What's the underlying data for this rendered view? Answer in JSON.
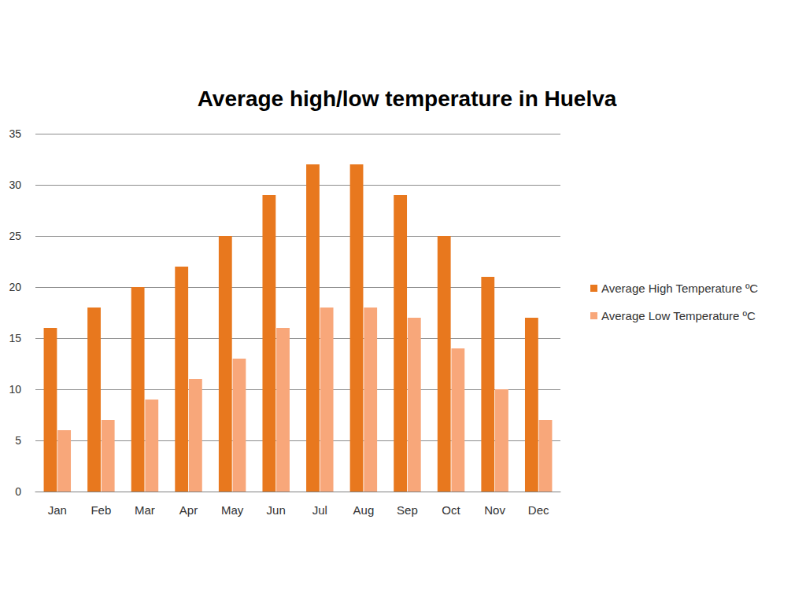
{
  "chart_data": {
    "type": "bar",
    "title": "Average high/low temperature in Huelva",
    "categories": [
      "Jan",
      "Feb",
      "Mar",
      "Apr",
      "May",
      "Jun",
      "Jul",
      "Aug",
      "Sep",
      "Oct",
      "Nov",
      "Dec"
    ],
    "series": [
      {
        "name": "Average High Temperature ºC",
        "color": "#e8781e",
        "values": [
          16,
          18,
          20,
          22,
          25,
          29,
          32,
          32,
          29,
          25,
          21,
          17
        ]
      },
      {
        "name": "Average Low Temperature ºC",
        "color": "#f8a77a",
        "values": [
          6,
          7,
          9,
          11,
          13,
          16,
          18,
          18,
          17,
          14,
          10,
          7
        ]
      }
    ],
    "ylim": [
      0,
      35
    ],
    "yticks": [
      0,
      5,
      10,
      15,
      20,
      25,
      30,
      35
    ],
    "grid": true,
    "legend": "right"
  }
}
